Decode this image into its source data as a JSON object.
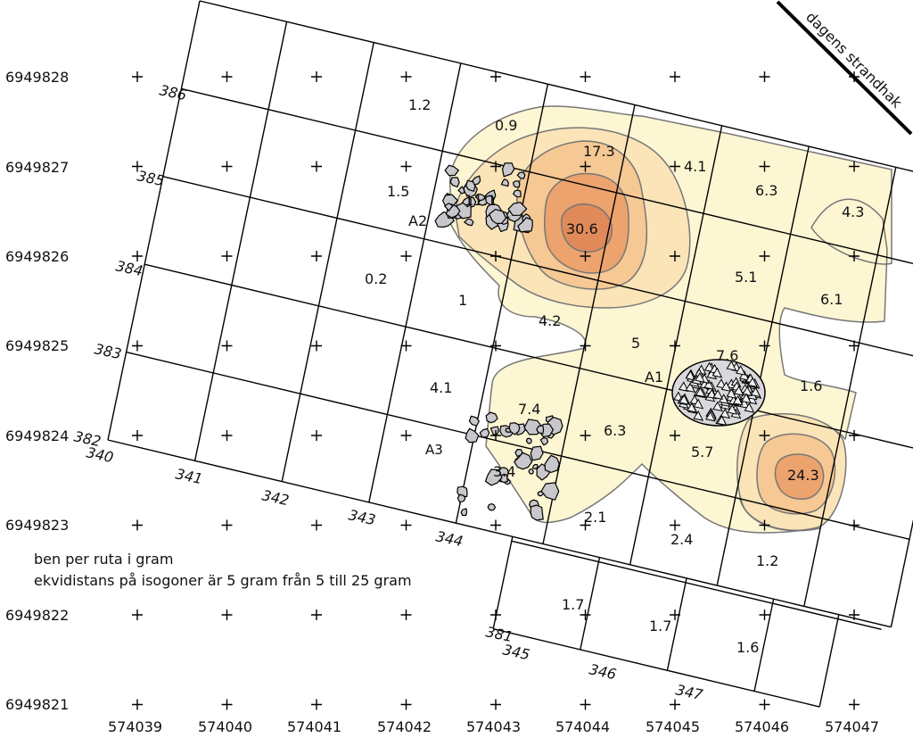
{
  "map": {
    "shoreline_label": "dagens strandhak",
    "legend": {
      "line1": "ben per ruta i gram",
      "line2": "ekvidistans på isogoner är 5 gram från 5 till 25 gram"
    },
    "northings": [
      "6949828",
      "6949827",
      "6949826",
      "6949825",
      "6949824",
      "6949823",
      "6949822",
      "6949821"
    ],
    "eastings": [
      "574039",
      "574040",
      "574041",
      "574042",
      "574043",
      "574044",
      "574045",
      "574046",
      "574047"
    ],
    "local_row_labels": [
      "386",
      "385",
      "384",
      "383",
      "382",
      "381"
    ],
    "local_col_labels": [
      "340",
      "341",
      "342",
      "343",
      "344",
      "345",
      "346",
      "347"
    ],
    "features": {
      "a1": "A1",
      "a2": "A2",
      "a3": "A3"
    },
    "cell_values": {
      "v1": "1.2",
      "v2": "0.9",
      "v3": "17.3",
      "v4": "4.1",
      "v5": "6.3",
      "v6": "4.3",
      "v7": "1.5",
      "v8": "11.1",
      "v9": "30.6",
      "v10": "5.1",
      "v11": "6.1",
      "v12": "0.2",
      "v13": "1",
      "v14": "4.2",
      "v15": "5",
      "v16": "7.6",
      "v17": "1.6",
      "v18": "4.1",
      "v19": "7.4",
      "v20": "6.3",
      "v21": "5.7",
      "v22": "24.3",
      "v23": "3.4",
      "v24": "2.1",
      "v25": "2.4",
      "v26": "1.2",
      "v27": "1.7",
      "v28": "1.7",
      "v29": "1.6"
    },
    "colors": {
      "level1": "#fdf6d3",
      "level2": "#fae4b8",
      "level3": "#f5c894",
      "level4": "#eca36e",
      "level5": "#e08a5a",
      "contour": "#777777",
      "stone": "#c8c8cc"
    }
  }
}
